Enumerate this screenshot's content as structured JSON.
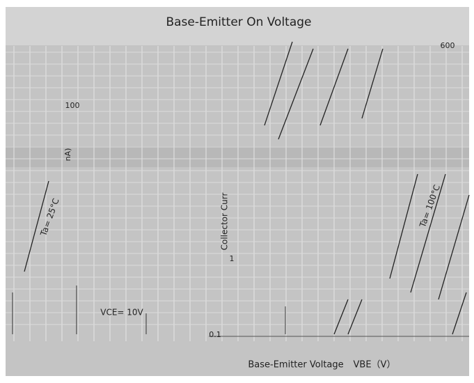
{
  "header": {
    "title": "Base-Emitter On Voltage"
  },
  "labels": {
    "top_value": "600",
    "left_value": "100",
    "left_unit": "nA)",
    "y_axis": "Collector Curr",
    "value_1": "1",
    "value_01": "0.1",
    "condition": "VCE= 10V",
    "curve_25": "Ta= 25°C",
    "curve_100": "Ta= 100°C"
  },
  "x_axis": {
    "label": "Base-Emitter Voltage",
    "symbol": "VBE（V）"
  }
}
